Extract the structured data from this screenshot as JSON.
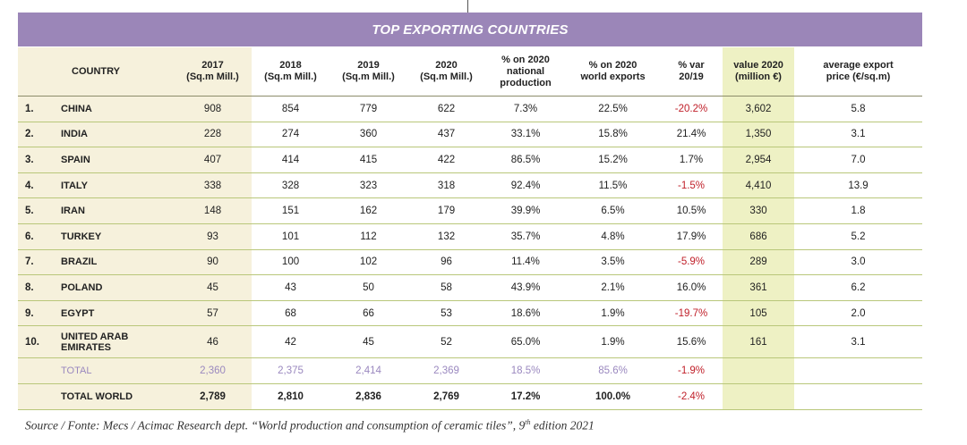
{
  "title": "TOP EXPORTING COUNTRIES",
  "headers": {
    "country": "COUNTRY",
    "y2017": "2017\n(Sq.m Mill.)",
    "y2018": "2018\n(Sq.m Mill.)",
    "y2019": "2019\n(Sq.m Mill.)",
    "y2020": "2020\n(Sq.m Mill.)",
    "pct_national": "% on 2020\nnational\nproduction",
    "pct_world": "% on 2020\nworld exports",
    "var": "% var\n20/19",
    "value": "value 2020\n(million €)",
    "price": "average export\nprice (€/sq.m)"
  },
  "rows": [
    {
      "rank": "1.",
      "country": "CHINA",
      "y2017": "908",
      "y2018": "854",
      "y2019": "779",
      "y2020": "622",
      "pct_national": "7.3%",
      "pct_world": "22.5%",
      "var": "-20.2%",
      "value": "3,602",
      "price": "5.8"
    },
    {
      "rank": "2.",
      "country": "INDIA",
      "y2017": "228",
      "y2018": "274",
      "y2019": "360",
      "y2020": "437",
      "pct_national": "33.1%",
      "pct_world": "15.8%",
      "var": "21.4%",
      "value": "1,350",
      "price": "3.1"
    },
    {
      "rank": "3.",
      "country": "SPAIN",
      "y2017": "407",
      "y2018": "414",
      "y2019": "415",
      "y2020": "422",
      "pct_national": "86.5%",
      "pct_world": "15.2%",
      "var": "1.7%",
      "value": "2,954",
      "price": "7.0"
    },
    {
      "rank": "4.",
      "country": "ITALY",
      "y2017": "338",
      "y2018": "328",
      "y2019": "323",
      "y2020": "318",
      "pct_national": "92.4%",
      "pct_world": "11.5%",
      "var": "-1.5%",
      "value": "4,410",
      "price": "13.9"
    },
    {
      "rank": "5.",
      "country": "IRAN",
      "y2017": "148",
      "y2018": "151",
      "y2019": "162",
      "y2020": "179",
      "pct_national": "39.9%",
      "pct_world": "6.5%",
      "var": "10.5%",
      "value": "330",
      "price": "1.8"
    },
    {
      "rank": "6.",
      "country": "TURKEY",
      "y2017": "93",
      "y2018": "101",
      "y2019": "112",
      "y2020": "132",
      "pct_national": "35.7%",
      "pct_world": "4.8%",
      "var": "17.9%",
      "value": "686",
      "price": "5.2"
    },
    {
      "rank": "7.",
      "country": "BRAZIL",
      "y2017": "90",
      "y2018": "100",
      "y2019": "102",
      "y2020": "96",
      "pct_national": "11.4%",
      "pct_world": "3.5%",
      "var": "-5.9%",
      "value": "289",
      "price": "3.0"
    },
    {
      "rank": "8.",
      "country": "POLAND",
      "y2017": "45",
      "y2018": "43",
      "y2019": "50",
      "y2020": "58",
      "pct_national": "43.9%",
      "pct_world": "2.1%",
      "var": "16.0%",
      "value": "361",
      "price": "6.2"
    },
    {
      "rank": "9.",
      "country": "EGYPT",
      "y2017": "57",
      "y2018": "68",
      "y2019": "66",
      "y2020": "53",
      "pct_national": "18.6%",
      "pct_world": "1.9%",
      "var": "-19.7%",
      "value": "105",
      "price": "2.0"
    },
    {
      "rank": "10.",
      "country": "UNITED ARAB\nEMIRATES",
      "y2017": "46",
      "y2018": "42",
      "y2019": "45",
      "y2020": "52",
      "pct_national": "65.0%",
      "pct_world": "1.9%",
      "var": "15.6%",
      "value": "161",
      "price": "3.1"
    }
  ],
  "total": {
    "label": "TOTAL",
    "y2017": "2,360",
    "y2018": "2,375",
    "y2019": "2,414",
    "y2020": "2,369",
    "pct_national": "18.5%",
    "pct_world": "85.6%",
    "var": "-1.9%"
  },
  "world": {
    "label": "TOTAL WORLD",
    "y2017": "2,789",
    "y2018": "2,810",
    "y2019": "2,836",
    "y2020": "2,769",
    "pct_national": "17.2%",
    "pct_world": "100.0%",
    "var": "-2.4%"
  },
  "source_pre": "Source / Fonte: Mecs / Acimac Research dept. “World production and consumption of ceramic tiles”, 9",
  "source_sup": "th",
  "source_post": " edition 2021",
  "colors": {
    "title_bar": "#9b86b8",
    "negative": "#c0202a",
    "total_text": "#9a88bf",
    "highlight": "#eef1c4",
    "tan": "#f6f1dc"
  }
}
